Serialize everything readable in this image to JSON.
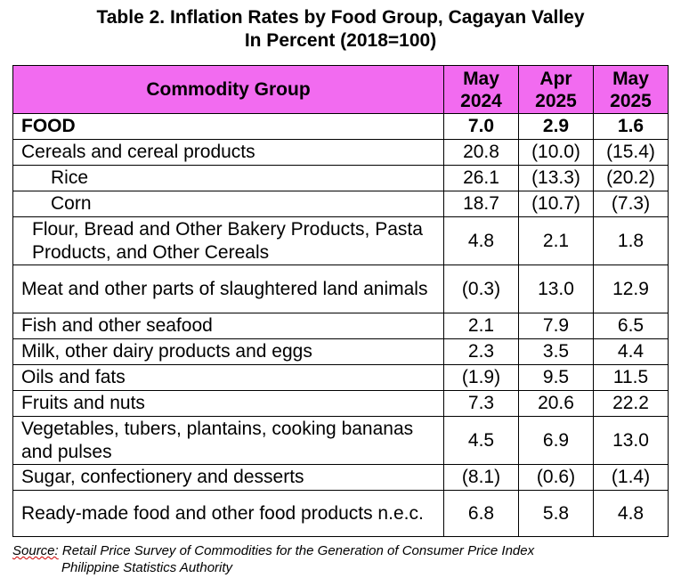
{
  "title_line1": "Table 2. Inflation Rates by Food Group, Cagayan Valley",
  "title_line2": "In Percent (2018=100)",
  "header": {
    "group": "Commodity Group",
    "periods": [
      {
        "month": "May",
        "year": "2024"
      },
      {
        "month": "Apr",
        "year": "2025"
      },
      {
        "month": "May",
        "year": "2025"
      }
    ]
  },
  "rows": [
    {
      "label": "FOOD",
      "values": [
        "7.0",
        "2.9",
        "1.6"
      ]
    },
    {
      "label": "Cereals and cereal products",
      "values": [
        "20.8",
        "(10.0)",
        "(15.4)"
      ]
    },
    {
      "label": "Rice",
      "values": [
        "26.1",
        "(13.3)",
        "(20.2)"
      ]
    },
    {
      "label": "Corn",
      "values": [
        "18.7",
        "(10.7)",
        "(7.3)"
      ]
    },
    {
      "label": "Flour, Bread and Other Bakery Products, Pasta Products, and Other Cereals",
      "values": [
        "4.8",
        "2.1",
        "1.8"
      ]
    },
    {
      "label": "Meat and other parts of slaughtered land animals",
      "values": [
        "(0.3)",
        "13.0",
        "12.9"
      ]
    },
    {
      "label": "Fish and other seafood",
      "values": [
        "2.1",
        "7.9",
        "6.5"
      ]
    },
    {
      "label": "Milk, other dairy products and eggs",
      "values": [
        "2.3",
        "3.5",
        "4.4"
      ]
    },
    {
      "label": "Oils and fats",
      "values": [
        "(1.9)",
        "9.5",
        "11.5"
      ]
    },
    {
      "label": "Fruits and nuts",
      "values": [
        "7.3",
        "20.6",
        "22.2"
      ]
    },
    {
      "label": "Vegetables, tubers, plantains, cooking bananas and pulses",
      "values": [
        "4.5",
        "6.9",
        "13.0"
      ]
    },
    {
      "label": "Sugar, confectionery and desserts",
      "values": [
        "(8.1)",
        "(0.6)",
        "(1.4)"
      ]
    },
    {
      "label": "Ready-made food and other food products n.e.c.",
      "values": [
        "6.8",
        "5.8",
        "4.8"
      ]
    }
  ],
  "source": {
    "label": "Source:",
    "line1": "Retail Price Survey of Commodities for the Generation of Consumer Price Index",
    "line2": "Philippine Statistics Authority"
  },
  "colors": {
    "header_bg": "#f26bf0"
  }
}
